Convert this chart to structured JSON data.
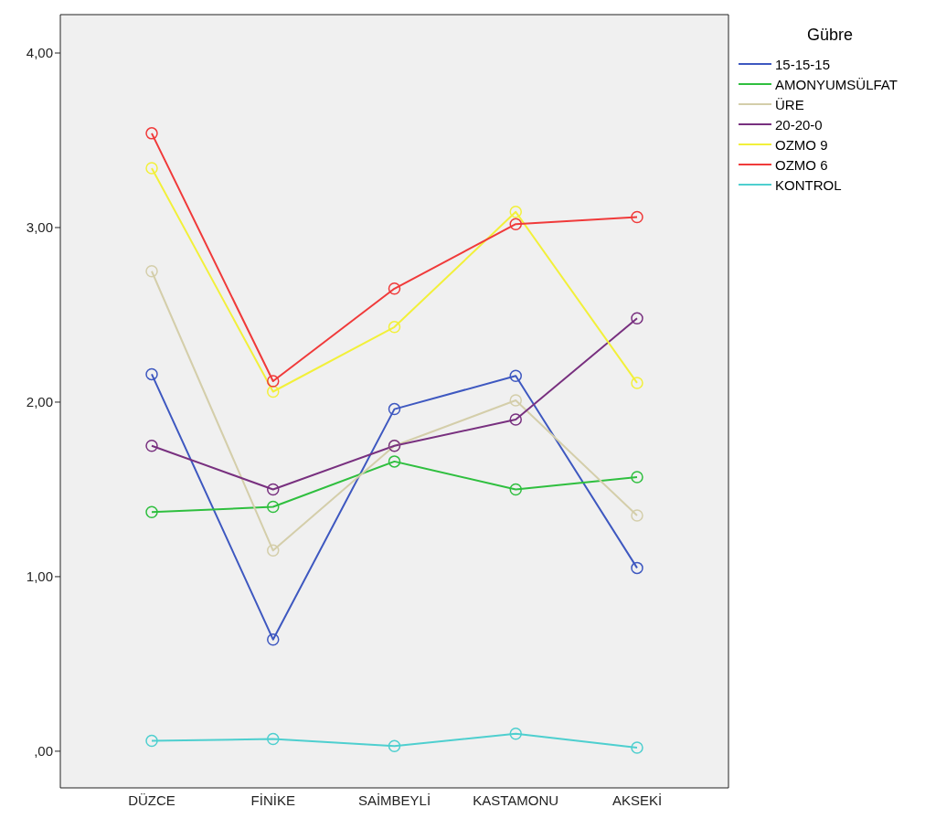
{
  "chart_data": {
    "type": "line",
    "legend_title": "Gübre",
    "categories": [
      "DÜZCE",
      "FİNİKE",
      "SAİMBEYLİ",
      "KASTAMONU",
      "AKSEKİ"
    ],
    "series": [
      {
        "name": "15-15-15",
        "color": "#3e58c0",
        "values": [
          2.16,
          0.64,
          1.96,
          2.15,
          1.05
        ]
      },
      {
        "name": "AMONYUMSÜLFAT",
        "color": "#2fbf3f",
        "values": [
          1.37,
          1.4,
          1.66,
          1.5,
          1.57
        ]
      },
      {
        "name": "ÜRE",
        "color": "#d4ceaa",
        "values": [
          2.75,
          1.15,
          1.75,
          2.01,
          1.35
        ]
      },
      {
        "name": "20-20-0",
        "color": "#78307f",
        "values": [
          1.75,
          1.5,
          1.75,
          1.9,
          2.48
        ]
      },
      {
        "name": "OZMO 9",
        "color": "#f2f03a",
        "values": [
          3.34,
          2.06,
          2.43,
          3.09,
          2.11
        ]
      },
      {
        "name": "OZMO 6",
        "color": "#f03a3a",
        "values": [
          3.54,
          2.12,
          2.65,
          3.02,
          3.06
        ]
      },
      {
        "name": "KONTROL",
        "color": "#4ecfcf",
        "values": [
          0.06,
          0.07,
          0.03,
          0.1,
          0.02
        ]
      }
    ],
    "ylim": [
      -0.21,
      4.22
    ],
    "yticks": [
      {
        "value": 0,
        "label": ",00"
      },
      {
        "value": 1,
        "label": "1,00"
      },
      {
        "value": 2,
        "label": "2,00"
      },
      {
        "value": 3,
        "label": "3,00"
      },
      {
        "value": 4,
        "label": "4,00"
      }
    ],
    "grid": false,
    "legend": "top right",
    "marker": "circle",
    "line_style": "solid"
  }
}
